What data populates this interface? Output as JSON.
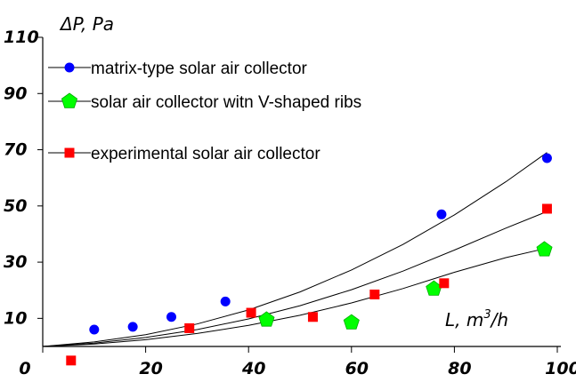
{
  "chart_data": {
    "type": "scatter",
    "ylabel": "ΔP, Pa",
    "xlabel_base": "L, m",
    "xlabel_sup": "3",
    "xlabel_tail": "/h",
    "xlim": [
      0,
      100
    ],
    "ylim": [
      -10,
      110
    ],
    "x_ticks": [
      "0",
      "20",
      "40",
      "60",
      "80",
      "100"
    ],
    "y_ticks": [
      "10",
      "30",
      "50",
      "70",
      "90",
      "110"
    ],
    "legend_position": "top-left",
    "series": [
      {
        "name": "matrix-type solar air collector",
        "marker": "circle",
        "color": "#0000ff",
        "points": [
          [
            10,
            6
          ],
          [
            17.5,
            7
          ],
          [
            25,
            10.5
          ],
          [
            35.5,
            16
          ],
          [
            77.5,
            47
          ],
          [
            98,
            67
          ]
        ],
        "fit": [
          [
            0,
            0
          ],
          [
            10,
            1.6
          ],
          [
            20,
            4.2
          ],
          [
            30,
            8.0
          ],
          [
            40,
            13.0
          ],
          [
            50,
            19.4
          ],
          [
            60,
            27.2
          ],
          [
            70,
            36.3
          ],
          [
            80,
            46.8
          ],
          [
            90,
            58.6
          ],
          [
            98,
            69.0
          ]
        ]
      },
      {
        "name": "solar air collector witn V-shaped ribs",
        "marker": "pentagon",
        "color": "#00ff00",
        "points": [
          [
            43.5,
            9.5
          ],
          [
            60,
            8.5
          ],
          [
            76,
            20.5
          ],
          [
            97.5,
            34.5
          ]
        ],
        "fit": [
          [
            0,
            0
          ],
          [
            10,
            0.9
          ],
          [
            20,
            2.4
          ],
          [
            30,
            4.6
          ],
          [
            40,
            7.5
          ],
          [
            50,
            11.1
          ],
          [
            60,
            15.5
          ],
          [
            70,
            20.6
          ],
          [
            80,
            26.4
          ],
          [
            90,
            31.6
          ],
          [
            98,
            35.0
          ]
        ]
      },
      {
        "name": "experimental solar air collector",
        "marker": "square",
        "color": "#ff0000",
        "points": [
          [
            5.5,
            -5
          ],
          [
            28.5,
            6.5
          ],
          [
            40.5,
            12
          ],
          [
            52.5,
            10.5
          ],
          [
            64.5,
            18.5
          ],
          [
            78,
            22.5
          ],
          [
            98,
            49
          ]
        ],
        "fit": [
          [
            0,
            0
          ],
          [
            10,
            1.2
          ],
          [
            20,
            3.2
          ],
          [
            30,
            6.0
          ],
          [
            40,
            9.8
          ],
          [
            50,
            14.5
          ],
          [
            60,
            20.2
          ],
          [
            70,
            26.8
          ],
          [
            80,
            34.3
          ],
          [
            90,
            42.1
          ],
          [
            98,
            48.0
          ]
        ]
      }
    ]
  }
}
